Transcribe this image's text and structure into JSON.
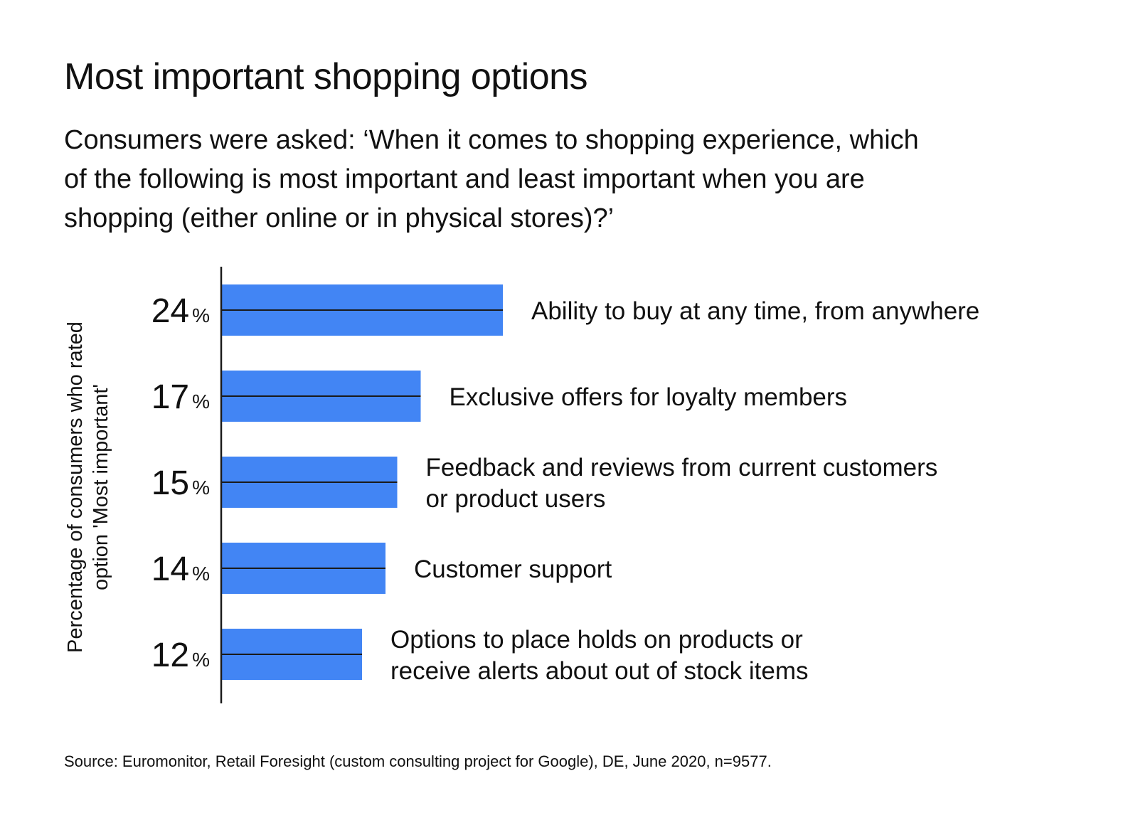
{
  "chart_data": {
    "type": "bar",
    "orientation": "horizontal",
    "title": "Most important shopping options",
    "subtitle": [
      "Consumers were asked: ‘When it comes to shopping experience, which",
      "of the following is most important and least important when you are",
      "shopping (either online or in physical stores)?’"
    ],
    "ylabel": [
      "Percentage of consumers who rated",
      "option 'Most important'"
    ],
    "value_suffix": "%",
    "bar_color": "#4285F4",
    "categories": [
      [
        "Ability to buy at any time, from anywhere"
      ],
      [
        "Exclusive offers for loyalty members"
      ],
      [
        "Feedback and reviews from current customers",
        "or product users"
      ],
      [
        "Customer support"
      ],
      [
        "Options to place holds on products or",
        "receive alerts about out of stock items"
      ]
    ],
    "values": [
      24,
      17,
      15,
      14,
      12
    ],
    "grid": false,
    "legend": "none"
  },
  "source": "Source: Euromonitor, Retail Foresight (custom consulting project for Google), DE, June 2020, n=9577."
}
